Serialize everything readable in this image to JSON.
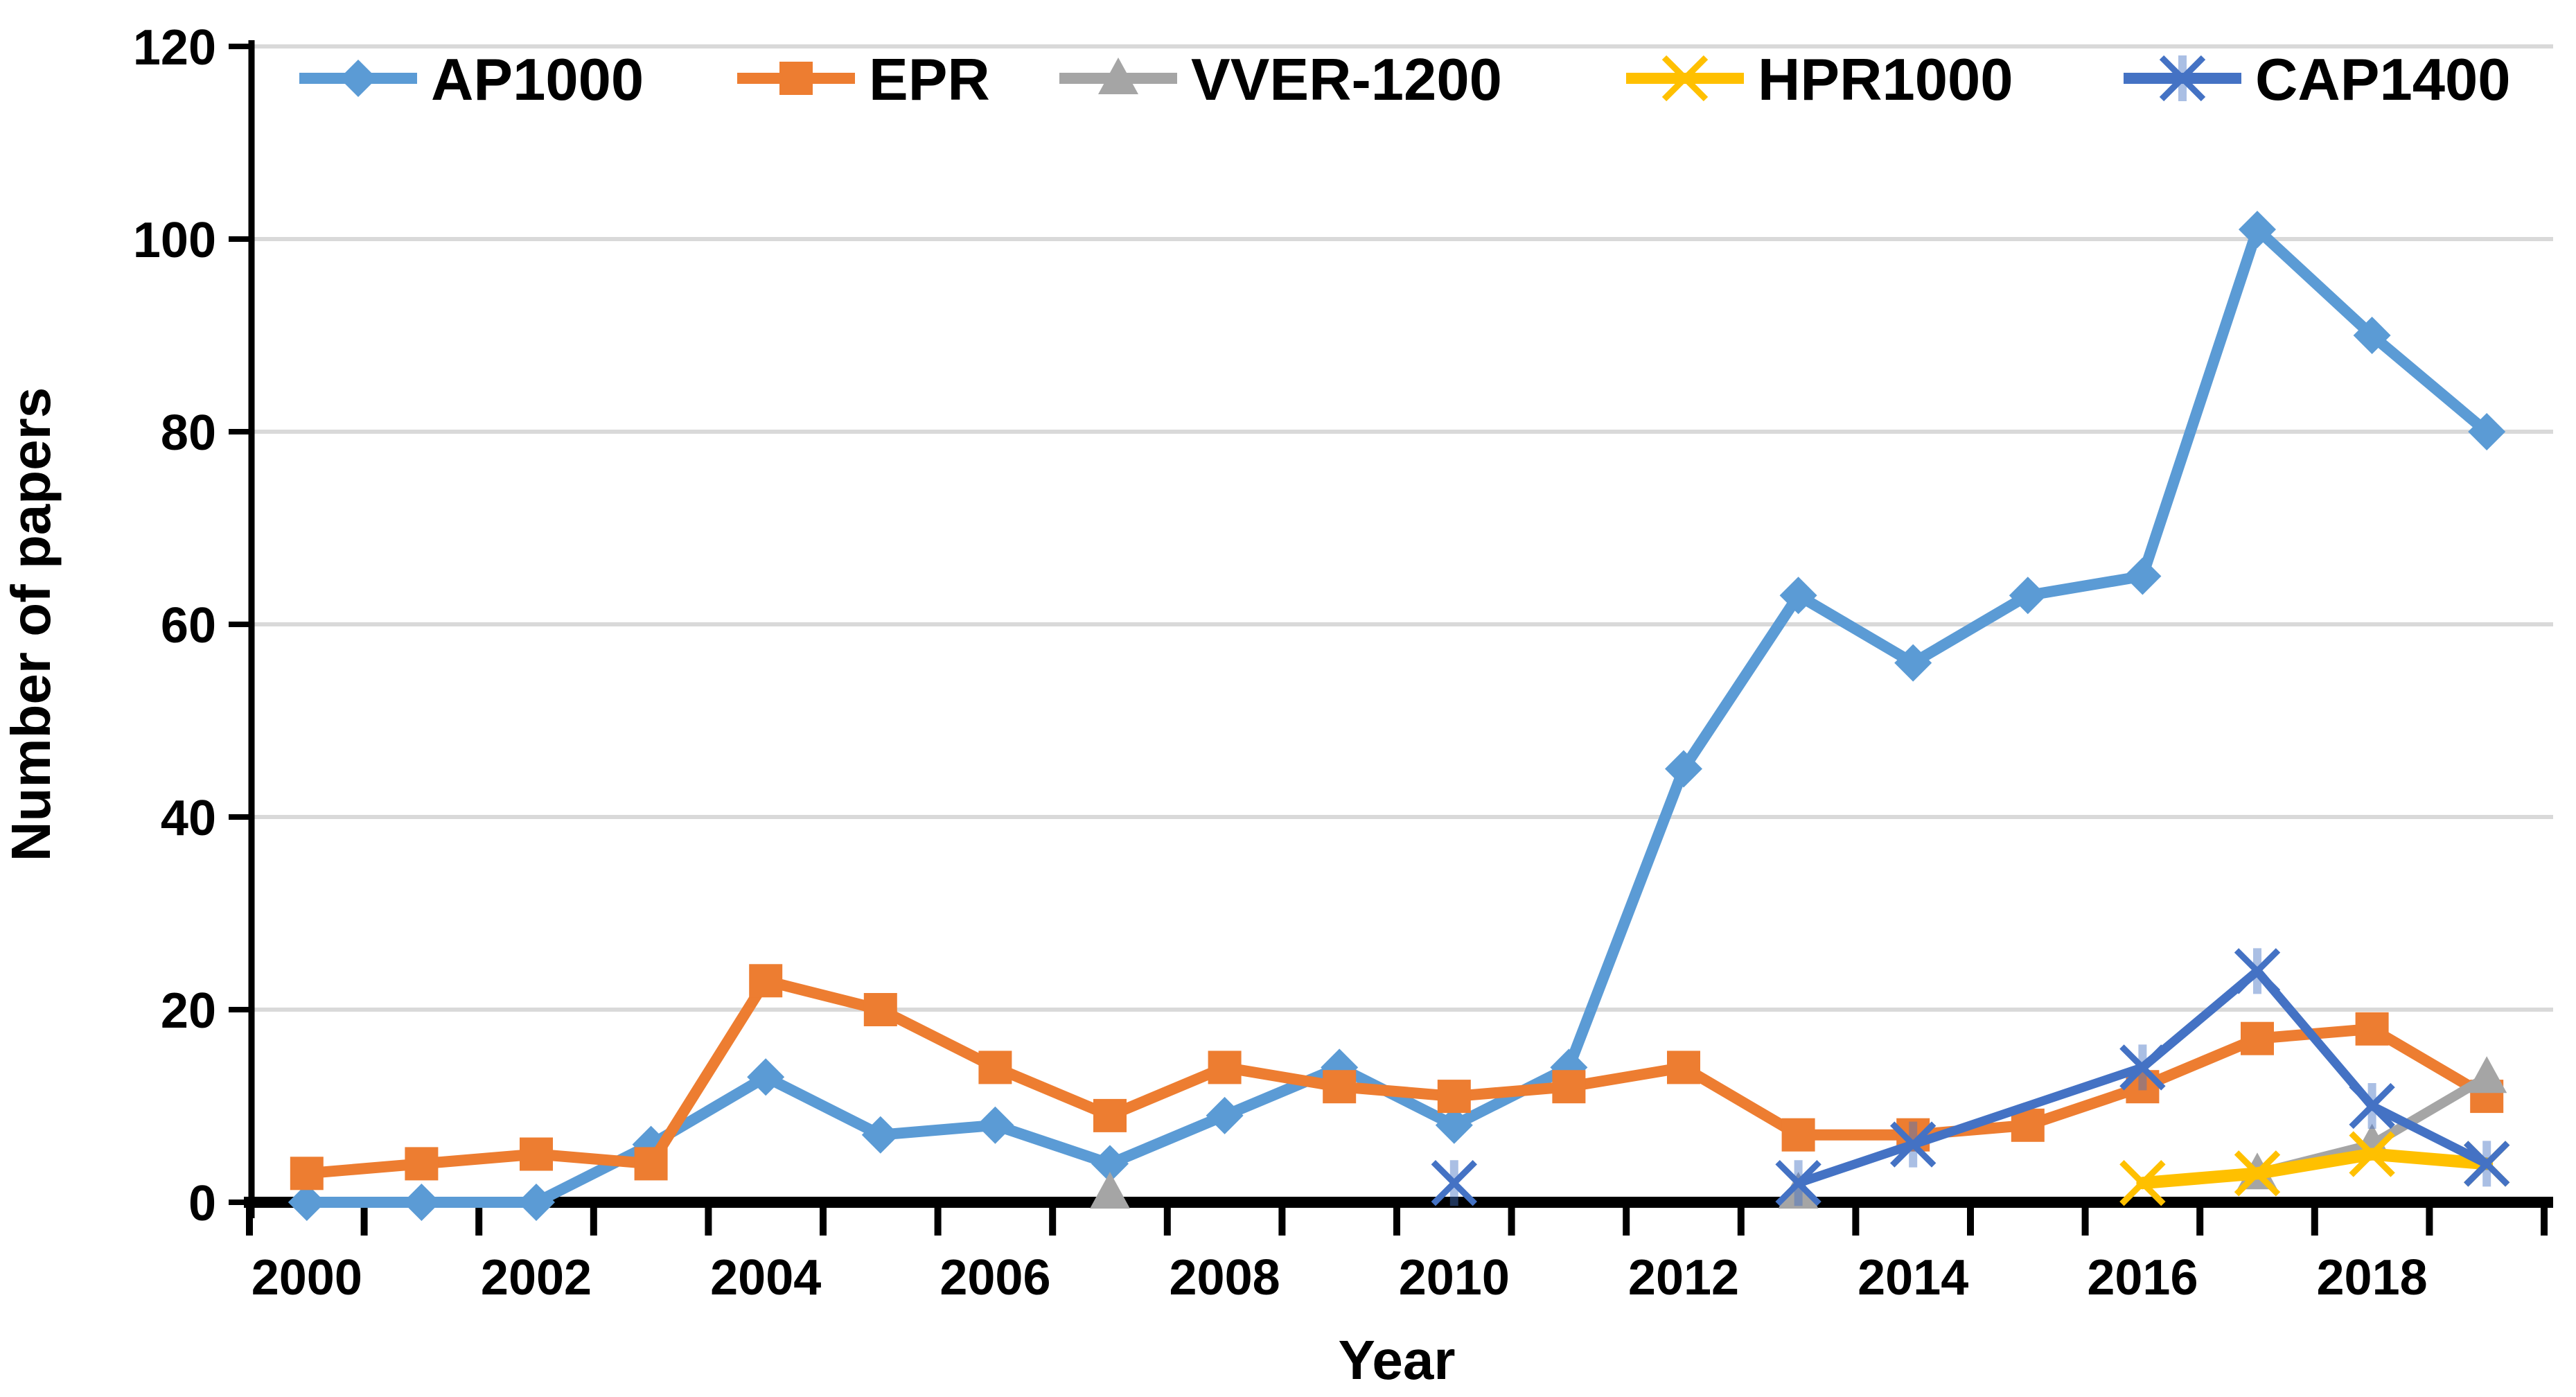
{
  "chart_data": {
    "type": "line",
    "title": "",
    "xlabel": "Year",
    "ylabel": "Number of papers",
    "x": [
      2000,
      2001,
      2002,
      2003,
      2004,
      2005,
      2006,
      2007,
      2008,
      2009,
      2010,
      2011,
      2012,
      2013,
      2014,
      2015,
      2016,
      2017,
      2018,
      2019
    ],
    "x_axis_tick_labels": [
      "2000",
      "2002",
      "2004",
      "2006",
      "2008",
      "2010",
      "2012",
      "2014",
      "2016",
      "2018"
    ],
    "y_ticks": [
      0,
      20,
      40,
      60,
      80,
      100,
      120
    ],
    "ylim": [
      0,
      120
    ],
    "grid": "horizontal",
    "grid_color": "#D9D9D9",
    "axis_color": "#000000",
    "legend_position": "top-inside",
    "series": [
      {
        "name": "AP1000",
        "color": "#5B9BD5",
        "marker": "diamond",
        "values": [
          0,
          0,
          0,
          6,
          13,
          7,
          8,
          4,
          9,
          14,
          8,
          14,
          45,
          63,
          56,
          63,
          65,
          101,
          90,
          80
        ],
        "line_runs": [
          [
            2000,
            2019
          ]
        ]
      },
      {
        "name": "EPR",
        "color": "#ED7D31",
        "marker": "square",
        "values": [
          3,
          4,
          5,
          4,
          23,
          20,
          14,
          9,
          14,
          12,
          11,
          12,
          14,
          7,
          7,
          8,
          12,
          17,
          18,
          11
        ],
        "line_runs": [
          [
            2000,
            2019
          ]
        ]
      },
      {
        "name": "VVER-1200",
        "color": "#A5A5A5",
        "marker": "triangle",
        "values": [
          null,
          null,
          null,
          null,
          null,
          null,
          null,
          1,
          null,
          null,
          null,
          null,
          null,
          1,
          null,
          null,
          null,
          3,
          6,
          13
        ],
        "line_runs": [
          [
            2017,
            2019
          ]
        ]
      },
      {
        "name": "HPR1000",
        "color": "#FFC000",
        "marker": "x",
        "values": [
          null,
          null,
          null,
          null,
          null,
          null,
          null,
          null,
          null,
          null,
          null,
          null,
          null,
          null,
          null,
          null,
          2,
          3,
          5,
          4
        ],
        "line_runs": [
          [
            2016,
            2019
          ]
        ]
      },
      {
        "name": "CAP1400",
        "color": "#4472C4",
        "marker": "asterisk",
        "values": [
          null,
          null,
          null,
          null,
          null,
          null,
          null,
          null,
          null,
          null,
          2,
          null,
          null,
          2,
          6,
          null,
          14,
          24,
          10,
          4
        ],
        "line_runs": [
          [
            2013,
            2019
          ]
        ]
      }
    ]
  }
}
